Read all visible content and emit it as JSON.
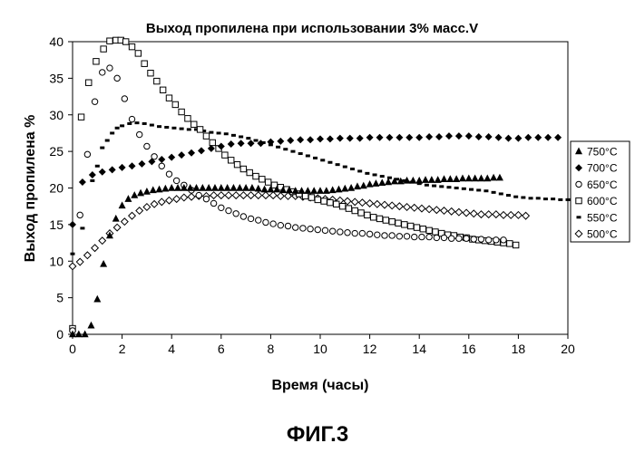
{
  "figure_caption": "ФИГ.3",
  "chart_data": {
    "type": "scatter",
    "title": "Выход пропилена при использовании 3% масс.V",
    "xlabel": "Время (часы)",
    "ylabel": "Выход пропилена %",
    "xlim": [
      0,
      20
    ],
    "ylim": [
      0,
      40
    ],
    "x_ticks": [
      0,
      2,
      4,
      6,
      8,
      10,
      12,
      14,
      16,
      18,
      20
    ],
    "y_ticks": [
      0,
      5,
      10,
      15,
      20,
      25,
      30,
      35,
      40
    ],
    "grid": false,
    "legend_position": "right",
    "series": [
      {
        "name": "750°C",
        "marker": "triangle-filled",
        "x": [
          0.0,
          0.25,
          0.5,
          0.75,
          1.0,
          1.25,
          1.5,
          1.75,
          2.0,
          2.25,
          2.5,
          2.75,
          3.0,
          3.25,
          3.5,
          3.75,
          4.0,
          4.25,
          4.5,
          4.75,
          5.0,
          5.25,
          5.5,
          5.75,
          6.0,
          6.25,
          6.5,
          6.75,
          7.0,
          7.25,
          7.5,
          7.75,
          8.0,
          8.25,
          8.5,
          8.75,
          9.0,
          9.25,
          9.5,
          9.75,
          10.0,
          10.25,
          10.5,
          10.75,
          11.0,
          11.25,
          11.5,
          11.75,
          12.0,
          12.25,
          12.5,
          12.75,
          13.0,
          13.25,
          13.5,
          13.75,
          14.0,
          14.25,
          14.5,
          14.75,
          15.0,
          15.25,
          15.5,
          15.75,
          16.0,
          16.25,
          16.5,
          16.75,
          17.0,
          17.25
        ],
        "y": [
          0.0,
          0.0,
          0.0,
          1.2,
          4.8,
          9.6,
          13.5,
          15.8,
          17.6,
          18.5,
          19.0,
          19.3,
          19.5,
          19.7,
          19.8,
          19.9,
          20.0,
          20.0,
          20.0,
          20.0,
          20.0,
          20.0,
          20.0,
          20.0,
          20.0,
          20.0,
          20.0,
          20.0,
          20.0,
          20.0,
          19.9,
          19.8,
          19.8,
          19.8,
          19.7,
          19.7,
          19.6,
          19.6,
          19.6,
          19.6,
          19.6,
          19.6,
          19.7,
          19.8,
          19.9,
          20.0,
          20.2,
          20.3,
          20.5,
          20.6,
          20.7,
          20.8,
          20.9,
          20.9,
          21.0,
          21.0,
          21.0,
          21.1,
          21.1,
          21.1,
          21.2,
          21.2,
          21.2,
          21.3,
          21.3,
          21.3,
          21.3,
          21.3,
          21.4,
          21.4
        ]
      },
      {
        "name": "700°C",
        "marker": "diamond-filled",
        "x": [
          0.0,
          0.4,
          0.8,
          1.2,
          1.6,
          2.0,
          2.4,
          2.8,
          3.2,
          3.6,
          4.0,
          4.4,
          4.8,
          5.2,
          5.6,
          6.0,
          6.4,
          6.8,
          7.2,
          7.6,
          8.0,
          8.4,
          8.8,
          9.2,
          9.6,
          10.0,
          10.4,
          10.8,
          11.2,
          11.6,
          12.0,
          12.4,
          12.8,
          13.2,
          13.6,
          14.0,
          14.4,
          14.8,
          15.2,
          15.6,
          16.0,
          16.4,
          16.8,
          17.2,
          17.6,
          18.0,
          18.4,
          18.8,
          19.2,
          19.6
        ],
        "y": [
          15.0,
          20.8,
          21.8,
          22.2,
          22.5,
          22.8,
          23.0,
          23.3,
          23.6,
          23.9,
          24.2,
          24.5,
          24.8,
          25.1,
          25.4,
          25.7,
          26.0,
          26.1,
          26.1,
          26.1,
          26.3,
          26.4,
          26.5,
          26.6,
          26.6,
          26.7,
          26.7,
          26.8,
          26.8,
          26.8,
          26.9,
          26.9,
          26.9,
          26.9,
          26.9,
          26.9,
          27.0,
          27.0,
          27.1,
          27.1,
          27.1,
          27.0,
          27.0,
          26.9,
          26.8,
          26.8,
          26.9,
          26.9,
          26.9,
          26.9
        ]
      },
      {
        "name": "650°C",
        "marker": "circle-open",
        "x": [
          0.0,
          0.3,
          0.6,
          0.9,
          1.2,
          1.5,
          1.8,
          2.1,
          2.4,
          2.7,
          3.0,
          3.3,
          3.6,
          3.9,
          4.2,
          4.5,
          4.8,
          5.1,
          5.4,
          5.7,
          6.0,
          6.3,
          6.6,
          6.9,
          7.2,
          7.5,
          7.8,
          8.1,
          8.4,
          8.7,
          9.0,
          9.3,
          9.6,
          9.9,
          10.2,
          10.5,
          10.8,
          11.1,
          11.4,
          11.7,
          12.0,
          12.3,
          12.6,
          12.9,
          13.2,
          13.5,
          13.8,
          14.1,
          14.4,
          14.7,
          15.0,
          15.3,
          15.6,
          15.9,
          16.2,
          16.5,
          16.8,
          17.1,
          17.4
        ],
        "y": [
          0.5,
          16.3,
          24.6,
          31.8,
          35.8,
          36.4,
          35.0,
          32.2,
          29.4,
          27.3,
          25.7,
          24.3,
          23.0,
          21.9,
          21.0,
          20.4,
          19.7,
          19.0,
          18.5,
          17.9,
          17.3,
          16.9,
          16.5,
          16.1,
          15.8,
          15.6,
          15.3,
          15.1,
          14.9,
          14.8,
          14.6,
          14.5,
          14.4,
          14.3,
          14.2,
          14.1,
          14.0,
          13.9,
          13.8,
          13.8,
          13.7,
          13.6,
          13.5,
          13.5,
          13.4,
          13.4,
          13.3,
          13.3,
          13.3,
          13.2,
          13.2,
          13.1,
          13.1,
          13.1,
          13.0,
          13.0,
          12.9,
          12.9,
          12.9
        ]
      },
      {
        "name": "600°C",
        "marker": "square-open",
        "x": [
          0.0,
          0.35,
          0.65,
          0.95,
          1.25,
          1.5,
          1.75,
          1.95,
          2.15,
          2.4,
          2.65,
          2.9,
          3.15,
          3.4,
          3.65,
          3.9,
          4.15,
          4.4,
          4.65,
          4.9,
          5.15,
          5.4,
          5.65,
          5.9,
          6.15,
          6.4,
          6.65,
          6.9,
          7.15,
          7.4,
          7.65,
          7.9,
          8.15,
          8.4,
          8.65,
          8.9,
          9.15,
          9.4,
          9.65,
          9.9,
          10.15,
          10.4,
          10.65,
          10.9,
          11.15,
          11.4,
          11.65,
          11.9,
          12.15,
          12.4,
          12.65,
          12.9,
          13.15,
          13.4,
          13.65,
          13.9,
          14.15,
          14.4,
          14.65,
          14.9,
          15.15,
          15.4,
          15.65,
          15.9,
          16.15,
          16.4,
          16.65,
          16.9,
          17.15,
          17.4,
          17.65,
          17.9
        ],
        "y": [
          0.8,
          29.7,
          34.4,
          37.3,
          39.0,
          40.1,
          40.2,
          40.2,
          40.0,
          39.3,
          38.4,
          37.0,
          35.7,
          34.6,
          33.4,
          32.3,
          31.4,
          30.4,
          29.5,
          28.7,
          28.0,
          27.1,
          26.2,
          25.4,
          24.5,
          23.8,
          23.2,
          22.6,
          22.1,
          21.6,
          21.2,
          20.8,
          20.4,
          20.1,
          19.8,
          19.5,
          19.2,
          18.9,
          18.7,
          18.4,
          18.2,
          18.0,
          17.8,
          17.5,
          17.2,
          16.9,
          16.6,
          16.3,
          16.0,
          15.8,
          15.6,
          15.4,
          15.2,
          15.0,
          14.8,
          14.6,
          14.4,
          14.2,
          14.0,
          13.8,
          13.6,
          13.5,
          13.3,
          13.2,
          13.0,
          12.9,
          12.8,
          12.7,
          12.6,
          12.5,
          12.4,
          12.2
        ]
      },
      {
        "name": "550°C",
        "marker": "dash",
        "x": [
          0.0,
          0.4,
          0.8,
          1.0,
          1.2,
          1.4,
          1.6,
          1.8,
          2.0,
          2.3,
          2.6,
          2.9,
          3.2,
          3.5,
          3.8,
          4.1,
          4.4,
          4.7,
          5.0,
          5.3,
          5.6,
          5.9,
          6.2,
          6.5,
          6.8,
          7.1,
          7.4,
          7.7,
          8.0,
          8.3,
          8.6,
          8.9,
          9.2,
          9.5,
          9.8,
          10.1,
          10.4,
          10.7,
          11.0,
          11.3,
          11.6,
          11.9,
          12.2,
          12.5,
          12.8,
          13.1,
          13.4,
          13.7,
          14.0,
          14.3,
          14.6,
          14.9,
          15.2,
          15.5,
          15.8,
          16.1,
          16.4,
          16.7,
          17.0,
          17.3,
          17.6,
          17.9,
          18.2,
          18.5,
          18.8,
          19.1,
          19.4,
          19.7,
          20.0
        ],
        "y": [
          11.0,
          14.5,
          21.0,
          23.0,
          25.5,
          26.5,
          27.5,
          28.2,
          28.5,
          28.8,
          28.9,
          28.8,
          28.6,
          28.4,
          28.3,
          28.2,
          28.1,
          28.0,
          28.0,
          27.8,
          27.6,
          27.5,
          27.4,
          27.2,
          27.0,
          26.8,
          26.5,
          26.2,
          25.9,
          25.6,
          25.3,
          25.0,
          24.7,
          24.4,
          24.1,
          23.8,
          23.5,
          23.2,
          22.9,
          22.6,
          22.3,
          22.0,
          21.8,
          21.6,
          21.4,
          21.2,
          21.0,
          20.8,
          20.6,
          20.4,
          20.3,
          20.2,
          20.1,
          20.0,
          19.9,
          19.8,
          19.7,
          19.6,
          19.4,
          19.2,
          19.0,
          18.8,
          18.7,
          18.6,
          18.6,
          18.5,
          18.5,
          18.4,
          18.4
        ]
      },
      {
        "name": "500°C",
        "marker": "diamond-open",
        "x": [
          0.0,
          0.3,
          0.6,
          0.9,
          1.2,
          1.5,
          1.8,
          2.1,
          2.4,
          2.7,
          3.0,
          3.3,
          3.6,
          3.9,
          4.2,
          4.5,
          4.8,
          5.1,
          5.4,
          5.7,
          6.0,
          6.3,
          6.6,
          6.9,
          7.2,
          7.5,
          7.8,
          8.1,
          8.4,
          8.7,
          9.0,
          9.3,
          9.6,
          9.9,
          10.2,
          10.5,
          10.8,
          11.1,
          11.4,
          11.7,
          12.0,
          12.3,
          12.6,
          12.9,
          13.2,
          13.5,
          13.8,
          14.1,
          14.4,
          14.7,
          15.0,
          15.3,
          15.6,
          15.9,
          16.2,
          16.5,
          16.8,
          17.1,
          17.4,
          17.7,
          18.0,
          18.3
        ],
        "y": [
          9.3,
          9.9,
          10.8,
          11.8,
          12.8,
          13.8,
          14.6,
          15.4,
          16.2,
          16.9,
          17.4,
          17.8,
          18.1,
          18.3,
          18.5,
          18.7,
          18.8,
          18.9,
          18.9,
          19.0,
          19.0,
          19.0,
          19.0,
          19.0,
          19.0,
          19.0,
          19.0,
          19.0,
          18.9,
          18.9,
          18.9,
          18.8,
          18.7,
          18.6,
          18.5,
          18.4,
          18.3,
          18.2,
          18.1,
          18.0,
          17.9,
          17.8,
          17.7,
          17.6,
          17.5,
          17.4,
          17.3,
          17.2,
          17.1,
          17.0,
          16.9,
          16.8,
          16.7,
          16.6,
          16.5,
          16.4,
          16.4,
          16.4,
          16.3,
          16.3,
          16.3,
          16.2
        ]
      }
    ]
  }
}
